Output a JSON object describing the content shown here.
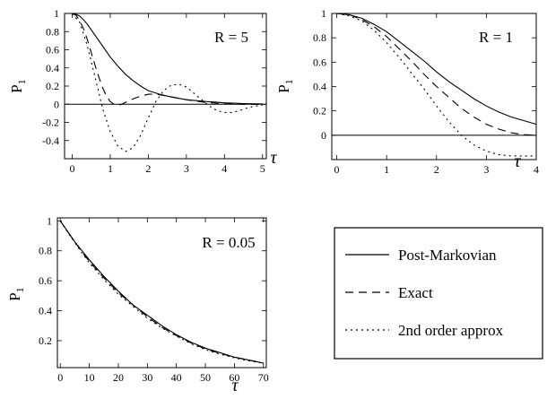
{
  "legend": {
    "entries": [
      {
        "label": "Post-Markovian",
        "style": "solid"
      },
      {
        "label": "Exact",
        "style": "dashed"
      },
      {
        "label": "2nd order approx",
        "style": "dotted"
      }
    ]
  },
  "chart_data": [
    {
      "type": "line",
      "panel": "top-left",
      "annotation": "R = 5",
      "xlabel": "τ",
      "ylabel": "P",
      "ylabel_subscript": "1",
      "xlim": [
        -0.2,
        5.1
      ],
      "ylim": [
        -0.6,
        1.0
      ],
      "x_ticks": [
        0,
        1,
        2,
        3,
        4,
        5
      ],
      "y_ticks": [
        1,
        0.8,
        0.6,
        0.4,
        0.2,
        0,
        -0.2,
        -0.4
      ],
      "zero_line": true,
      "series": [
        {
          "name": "Post-Markovian",
          "style": "solid",
          "x": [
            0,
            0.1,
            0.2,
            0.3,
            0.4,
            0.5,
            0.6,
            0.8,
            1.0,
            1.2,
            1.4,
            1.6,
            1.8,
            2.0,
            2.3,
            2.6,
            3.0,
            3.5,
            4.0,
            4.5,
            5.0
          ],
          "y": [
            1.0,
            0.99,
            0.97,
            0.93,
            0.88,
            0.82,
            0.76,
            0.64,
            0.52,
            0.42,
            0.33,
            0.26,
            0.2,
            0.15,
            0.11,
            0.08,
            0.05,
            0.03,
            0.015,
            0.007,
            0.003
          ]
        },
        {
          "name": "Exact",
          "style": "dashed",
          "x": [
            0,
            0.1,
            0.2,
            0.3,
            0.4,
            0.5,
            0.6,
            0.7,
            0.8,
            0.9,
            1.0,
            1.1,
            1.2,
            1.3,
            1.4,
            1.6,
            1.8,
            2.0,
            2.2,
            2.5,
            3.0,
            3.5,
            4.0,
            4.5,
            5.0
          ],
          "y": [
            1.0,
            0.98,
            0.92,
            0.83,
            0.71,
            0.57,
            0.43,
            0.3,
            0.18,
            0.09,
            0.03,
            0.0,
            -0.01,
            0.0,
            0.02,
            0.06,
            0.09,
            0.11,
            0.11,
            0.09,
            0.05,
            0.02,
            0.005,
            0.0,
            0.0
          ]
        },
        {
          "name": "2nd order approx",
          "style": "dotted",
          "x": [
            0,
            0.2,
            0.4,
            0.6,
            0.8,
            1.0,
            1.2,
            1.4,
            1.6,
            1.8,
            2.0,
            2.2,
            2.4,
            2.6,
            2.8,
            3.0,
            3.2,
            3.4,
            3.6,
            3.8,
            4.0,
            4.2,
            4.4,
            4.6,
            4.8,
            5.0
          ],
          "y": [
            1.0,
            0.9,
            0.64,
            0.3,
            -0.05,
            -0.3,
            -0.46,
            -0.52,
            -0.48,
            -0.34,
            -0.15,
            0.03,
            0.15,
            0.21,
            0.22,
            0.19,
            0.12,
            0.05,
            -0.02,
            -0.07,
            -0.09,
            -0.09,
            -0.07,
            -0.04,
            -0.02,
            -0.01
          ]
        }
      ]
    },
    {
      "type": "line",
      "panel": "top-right",
      "annotation": "R = 1",
      "xlabel": "τ",
      "ylabel": "P",
      "ylabel_subscript": "1",
      "xlim": [
        -0.1,
        4.0
      ],
      "ylim": [
        -0.2,
        1.0
      ],
      "x_ticks": [
        0,
        1,
        2,
        3,
        4
      ],
      "y_ticks": [
        1,
        0.8,
        0.6,
        0.4,
        0.2,
        0
      ],
      "zero_line": true,
      "series": [
        {
          "name": "Post-Markovian",
          "style": "solid",
          "x": [
            0,
            0.25,
            0.5,
            0.75,
            1.0,
            1.25,
            1.5,
            1.75,
            2.0,
            2.25,
            2.5,
            2.75,
            3.0,
            3.25,
            3.5,
            3.75,
            4.0
          ],
          "y": [
            1.0,
            0.99,
            0.96,
            0.91,
            0.85,
            0.77,
            0.69,
            0.61,
            0.52,
            0.44,
            0.37,
            0.3,
            0.24,
            0.19,
            0.15,
            0.12,
            0.09
          ]
        },
        {
          "name": "Exact",
          "style": "dashed",
          "x": [
            0,
            0.25,
            0.5,
            0.75,
            1.0,
            1.25,
            1.5,
            1.75,
            2.0,
            2.25,
            2.5,
            2.75,
            3.0,
            3.25,
            3.5,
            3.75,
            4.0
          ],
          "y": [
            1.0,
            0.99,
            0.95,
            0.89,
            0.81,
            0.71,
            0.61,
            0.5,
            0.4,
            0.31,
            0.22,
            0.15,
            0.09,
            0.05,
            0.02,
            0.005,
            0.0
          ]
        },
        {
          "name": "2nd order approx",
          "style": "dotted",
          "x": [
            0,
            0.25,
            0.5,
            0.75,
            1.0,
            1.25,
            1.5,
            1.75,
            2.0,
            2.25,
            2.5,
            2.75,
            3.0,
            3.25,
            3.5,
            3.75,
            4.0
          ],
          "y": [
            1.0,
            0.98,
            0.94,
            0.86,
            0.76,
            0.64,
            0.51,
            0.38,
            0.24,
            0.11,
            0.0,
            -0.08,
            -0.13,
            -0.16,
            -0.17,
            -0.17,
            -0.17
          ]
        }
      ]
    },
    {
      "type": "line",
      "panel": "bottom-left",
      "annotation": "R = 0.05",
      "xlabel": "τ",
      "ylabel": "P",
      "ylabel_subscript": "1",
      "xlim": [
        -1,
        71
      ],
      "ylim": [
        0.02,
        1.02
      ],
      "x_ticks": [
        0,
        10,
        20,
        30,
        40,
        50,
        60,
        70
      ],
      "y_ticks": [
        1,
        0.8,
        0.6,
        0.4,
        0.2
      ],
      "zero_line": false,
      "series": [
        {
          "name": "Post-Markovian",
          "style": "solid",
          "x": [
            0,
            2.5,
            5,
            7.5,
            10,
            15,
            20,
            25,
            30,
            35,
            40,
            45,
            50,
            55,
            60,
            65,
            70
          ],
          "y": [
            1.0,
            0.93,
            0.86,
            0.8,
            0.74,
            0.63,
            0.53,
            0.44,
            0.37,
            0.3,
            0.24,
            0.19,
            0.15,
            0.12,
            0.09,
            0.07,
            0.05
          ]
        },
        {
          "name": "Exact",
          "style": "dashed",
          "x": [
            0,
            2.5,
            5,
            7.5,
            10,
            15,
            20,
            25,
            30,
            35,
            40,
            45,
            50,
            55,
            60,
            65,
            70
          ],
          "y": [
            1.0,
            0.93,
            0.86,
            0.79,
            0.73,
            0.62,
            0.52,
            0.44,
            0.36,
            0.29,
            0.235,
            0.185,
            0.145,
            0.115,
            0.09,
            0.07,
            0.05
          ]
        },
        {
          "name": "2nd order approx",
          "style": "dotted",
          "x": [
            0,
            2.5,
            5,
            7.5,
            10,
            15,
            20,
            25,
            30,
            35,
            40,
            45,
            50,
            55,
            60,
            65,
            70
          ],
          "y": [
            1.0,
            0.925,
            0.855,
            0.785,
            0.72,
            0.61,
            0.51,
            0.43,
            0.35,
            0.285,
            0.23,
            0.18,
            0.14,
            0.11,
            0.085,
            0.065,
            0.05
          ]
        }
      ]
    }
  ]
}
